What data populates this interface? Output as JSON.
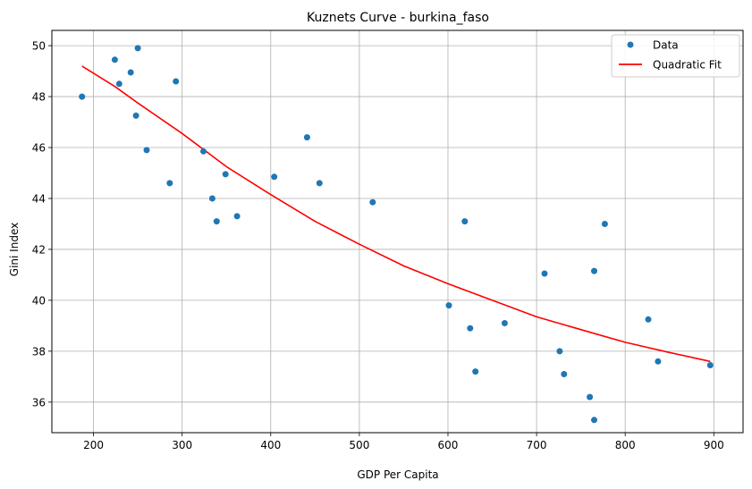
{
  "chart_data": {
    "type": "scatter",
    "title": "Kuznets Curve - burkina_faso",
    "xlabel": "GDP Per Capita",
    "ylabel": "Gini Index",
    "xlim": [
      153,
      933
    ],
    "ylim": [
      34.8,
      50.6
    ],
    "xticks": [
      200,
      300,
      400,
      500,
      600,
      700,
      800,
      900
    ],
    "yticks": [
      36,
      38,
      40,
      42,
      44,
      46,
      48,
      50
    ],
    "grid": true,
    "legend_position": "top-right",
    "colors": {
      "data": "#1f77b4",
      "fit": "#ff0000"
    },
    "series": [
      {
        "name": "Data",
        "kind": "scatter",
        "points": [
          [
            187,
            48.0
          ],
          [
            224,
            49.45
          ],
          [
            229,
            48.5
          ],
          [
            242,
            48.95
          ],
          [
            248,
            47.25
          ],
          [
            250,
            49.9
          ],
          [
            260,
            45.9
          ],
          [
            286,
            44.6
          ],
          [
            293,
            48.6
          ],
          [
            324,
            45.85
          ],
          [
            334,
            44.0
          ],
          [
            339,
            43.1
          ],
          [
            349,
            44.95
          ],
          [
            362,
            43.3
          ],
          [
            404,
            44.85
          ],
          [
            441,
            46.4
          ],
          [
            455,
            44.6
          ],
          [
            515,
            43.85
          ],
          [
            601,
            39.8
          ],
          [
            619,
            43.1
          ],
          [
            625,
            38.9
          ],
          [
            631,
            37.2
          ],
          [
            664,
            39.1
          ],
          [
            709,
            41.05
          ],
          [
            726,
            38.0
          ],
          [
            731,
            37.1
          ],
          [
            760,
            36.2
          ],
          [
            765,
            41.15
          ],
          [
            765,
            35.3
          ],
          [
            777,
            43.0
          ],
          [
            826,
            39.25
          ],
          [
            837,
            37.6
          ],
          [
            896,
            37.45
          ]
        ]
      },
      {
        "name": "Quadratic Fit",
        "kind": "line",
        "points": [
          [
            187,
            49.2
          ],
          [
            224,
            48.4
          ],
          [
            250,
            47.75
          ],
          [
            300,
            46.55
          ],
          [
            350,
            45.25
          ],
          [
            400,
            44.15
          ],
          [
            450,
            43.1
          ],
          [
            500,
            42.2
          ],
          [
            550,
            41.35
          ],
          [
            600,
            40.65
          ],
          [
            650,
            40.0
          ],
          [
            700,
            39.35
          ],
          [
            750,
            38.85
          ],
          [
            800,
            38.35
          ],
          [
            850,
            37.95
          ],
          [
            896,
            37.6
          ]
        ]
      }
    ]
  }
}
